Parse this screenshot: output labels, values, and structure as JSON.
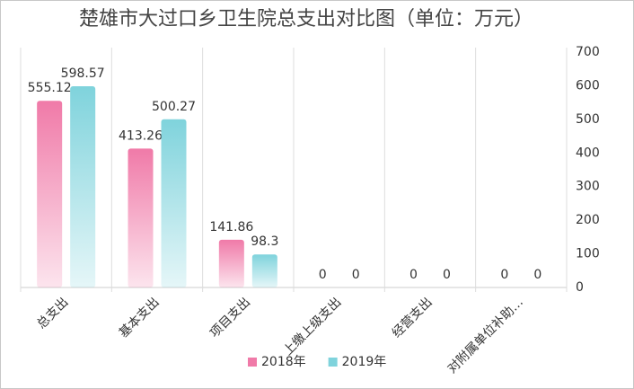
{
  "chart_data": {
    "type": "bar",
    "title": "楚雄市大过口乡卫生院总支出对比图（单位：万元）",
    "categories": [
      "总支出",
      "基本支出",
      "项目支出",
      "上缴上级支出",
      "经营支出",
      "对附属单位补助…"
    ],
    "series": [
      {
        "name": "2018年",
        "color": "#f07aa8",
        "values": [
          555.12,
          413.26,
          141.86,
          0,
          0,
          0
        ]
      },
      {
        "name": "2019年",
        "color": "#7fd3dc",
        "values": [
          598.57,
          500.27,
          98.3,
          0,
          0,
          0
        ]
      }
    ],
    "ylim": [
      0,
      700
    ],
    "yticks": [
      0,
      100,
      200,
      300,
      400,
      500,
      600,
      700
    ],
    "y_axis_side": "right",
    "legend": "bottom",
    "grid": false
  }
}
